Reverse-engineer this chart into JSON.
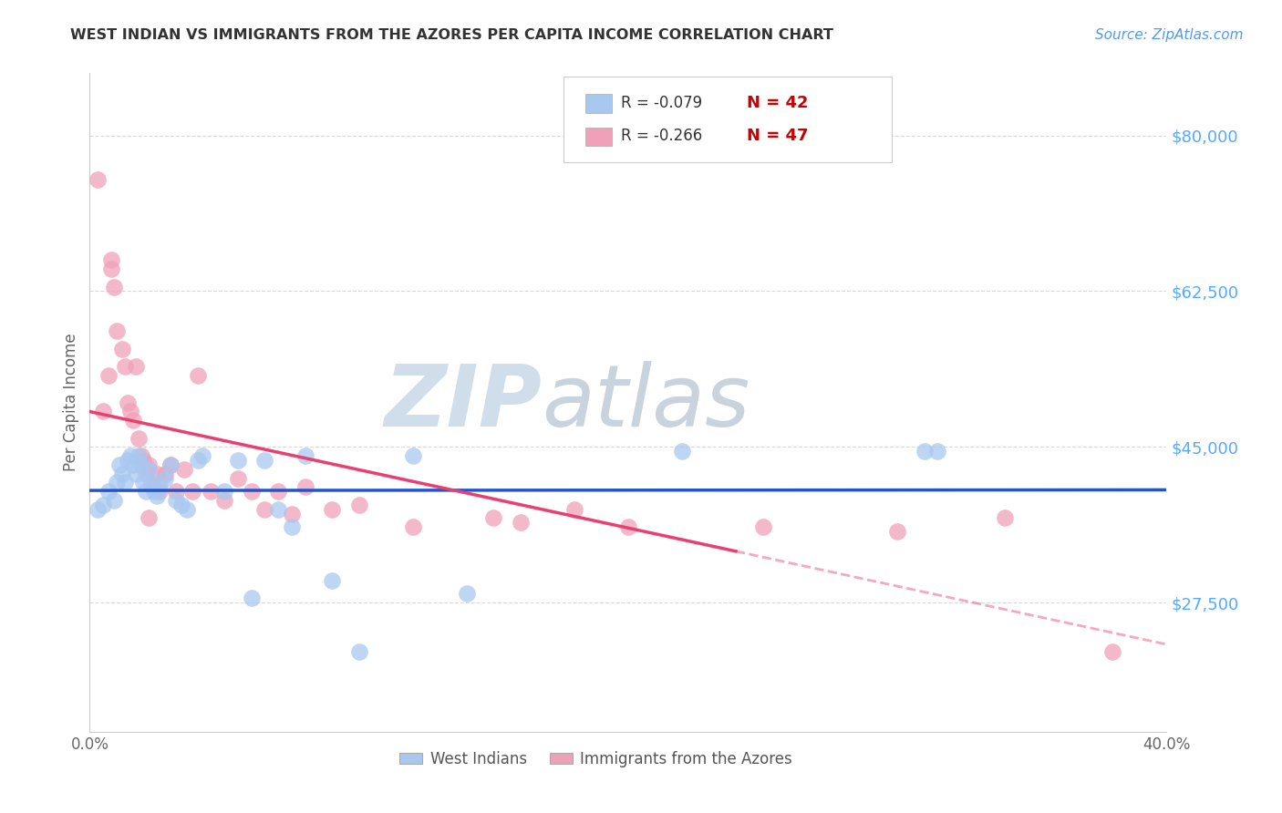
{
  "title": "WEST INDIAN VS IMMIGRANTS FROM THE AZORES PER CAPITA INCOME CORRELATION CHART",
  "source": "Source: ZipAtlas.com",
  "ylabel": "Per Capita Income",
  "ytick_labels": [
    "$80,000",
    "$62,500",
    "$45,000",
    "$27,500"
  ],
  "ytick_values": [
    80000,
    62500,
    45000,
    27500
  ],
  "ylim": [
    13000,
    87000
  ],
  "xlim": [
    0.0,
    0.4
  ],
  "legend_blue_r": "R = -0.079",
  "legend_blue_n": "N = 42",
  "legend_pink_r": "R = -0.266",
  "legend_pink_n": "N = 47",
  "blue_scatter_color": "#a8c8f0",
  "pink_scatter_color": "#f0a0b8",
  "blue_line_color": "#2255cc",
  "pink_line_color": "#e84070",
  "blue_scatter_x": [
    0.003,
    0.005,
    0.007,
    0.009,
    0.01,
    0.011,
    0.012,
    0.013,
    0.014,
    0.015,
    0.016,
    0.017,
    0.018,
    0.019,
    0.02,
    0.021,
    0.022,
    0.023,
    0.024,
    0.025,
    0.026,
    0.028,
    0.03,
    0.032,
    0.034,
    0.036,
    0.04,
    0.042,
    0.05,
    0.055,
    0.06,
    0.065,
    0.07,
    0.075,
    0.08,
    0.09,
    0.1,
    0.12,
    0.14,
    0.22,
    0.31,
    0.315
  ],
  "blue_scatter_y": [
    38000,
    38500,
    40000,
    39000,
    41000,
    43000,
    42000,
    41000,
    43500,
    44000,
    43000,
    42000,
    44000,
    43000,
    41000,
    40000,
    42500,
    41000,
    40000,
    39500,
    40500,
    41500,
    43000,
    39000,
    38500,
    38000,
    43500,
    44000,
    40000,
    43500,
    28000,
    43500,
    38000,
    36000,
    44000,
    30000,
    22000,
    44000,
    28500,
    44500,
    44500,
    44500
  ],
  "pink_scatter_x": [
    0.003,
    0.005,
    0.007,
    0.008,
    0.009,
    0.01,
    0.012,
    0.013,
    0.014,
    0.015,
    0.016,
    0.017,
    0.018,
    0.019,
    0.02,
    0.021,
    0.022,
    0.024,
    0.025,
    0.026,
    0.028,
    0.03,
    0.032,
    0.035,
    0.038,
    0.04,
    0.045,
    0.05,
    0.055,
    0.06,
    0.065,
    0.07,
    0.075,
    0.08,
    0.09,
    0.1,
    0.12,
    0.15,
    0.16,
    0.18,
    0.2,
    0.25,
    0.3,
    0.34,
    0.38,
    0.008,
    0.022
  ],
  "pink_scatter_y": [
    75000,
    49000,
    53000,
    65000,
    63000,
    58000,
    56000,
    54000,
    50000,
    49000,
    48000,
    54000,
    46000,
    44000,
    43500,
    42000,
    43000,
    40500,
    42000,
    40000,
    42000,
    43000,
    40000,
    42500,
    40000,
    53000,
    40000,
    39000,
    41500,
    40000,
    38000,
    40000,
    37500,
    40500,
    38000,
    38500,
    36000,
    37000,
    36500,
    38000,
    36000,
    36000,
    35500,
    37000,
    22000,
    66000,
    37000
  ],
  "watermark_zip": "ZIP",
  "watermark_atlas": "atlas",
  "background_color": "#ffffff",
  "grid_color": "#d8d8d8",
  "axis_color": "#cccccc",
  "title_color": "#333333",
  "source_color": "#5599ee",
  "ylabel_color": "#666666",
  "ytick_color": "#55aaff",
  "xtick_color": "#666666",
  "legend_r_color": "#333333",
  "legend_n_color": "#cc0000",
  "watermark_zip_color": "#c8d8e8",
  "watermark_atlas_color": "#c0ccd8"
}
